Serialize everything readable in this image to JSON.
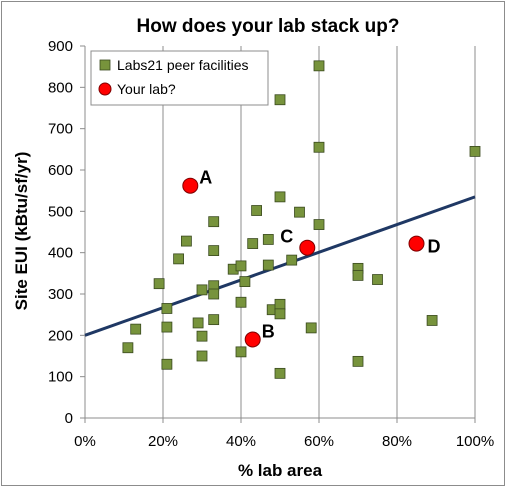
{
  "chart_data": {
    "type": "scatter",
    "title": "How does your lab stack up?",
    "xlabel": "% lab area",
    "ylabel": "Site EUI (kBtu/sf/yr)",
    "xlim": [
      0,
      100
    ],
    "ylim": [
      0,
      900
    ],
    "x_ticks": [
      "0%",
      "20%",
      "40%",
      "60%",
      "80%",
      "100%"
    ],
    "x_tick_values": [
      0,
      20,
      40,
      60,
      80,
      100
    ],
    "y_ticks": [
      "0",
      "100",
      "200",
      "300",
      "400",
      "500",
      "600",
      "700",
      "800",
      "900"
    ],
    "y_tick_values": [
      0,
      100,
      200,
      300,
      400,
      500,
      600,
      700,
      800,
      900
    ],
    "grid": "vertical",
    "legend_position": "top-left",
    "trendline": {
      "x": [
        0,
        100
      ],
      "y": [
        200,
        535
      ],
      "color": "#1f3864"
    },
    "series": [
      {
        "name": "Labs21 peer facilities",
        "marker": "square",
        "color": "#77933c",
        "points": [
          [
            11,
            170
          ],
          [
            13,
            215
          ],
          [
            19,
            325
          ],
          [
            21,
            265
          ],
          [
            21,
            220
          ],
          [
            21,
            130
          ],
          [
            24,
            385
          ],
          [
            26,
            428
          ],
          [
            29,
            230
          ],
          [
            30,
            310
          ],
          [
            30,
            198
          ],
          [
            30,
            150
          ],
          [
            33,
            475
          ],
          [
            33,
            405
          ],
          [
            33,
            320
          ],
          [
            33,
            300
          ],
          [
            33,
            238
          ],
          [
            38,
            360
          ],
          [
            40,
            368
          ],
          [
            40,
            280
          ],
          [
            40,
            160
          ],
          [
            41,
            330
          ],
          [
            43,
            422
          ],
          [
            44,
            502
          ],
          [
            47,
            432
          ],
          [
            47,
            370
          ],
          [
            48,
            262
          ],
          [
            50,
            770
          ],
          [
            50,
            535
          ],
          [
            50,
            275
          ],
          [
            50,
            252
          ],
          [
            50,
            108
          ],
          [
            53,
            382
          ],
          [
            55,
            498
          ],
          [
            58,
            218
          ],
          [
            60,
            852
          ],
          [
            60,
            655
          ],
          [
            60,
            468
          ],
          [
            70,
            362
          ],
          [
            70,
            345
          ],
          [
            70,
            137
          ],
          [
            75,
            335
          ],
          [
            89,
            236
          ],
          [
            100,
            645
          ]
        ]
      },
      {
        "name": "Your lab?",
        "marker": "circle",
        "color": "#ff0000",
        "points": [
          {
            "x": 27,
            "y": 562,
            "label": "A"
          },
          {
            "x": 43,
            "y": 190,
            "label": "B"
          },
          {
            "x": 57,
            "y": 412,
            "label": "C"
          },
          {
            "x": 85,
            "y": 422,
            "label": "D"
          }
        ]
      }
    ]
  }
}
